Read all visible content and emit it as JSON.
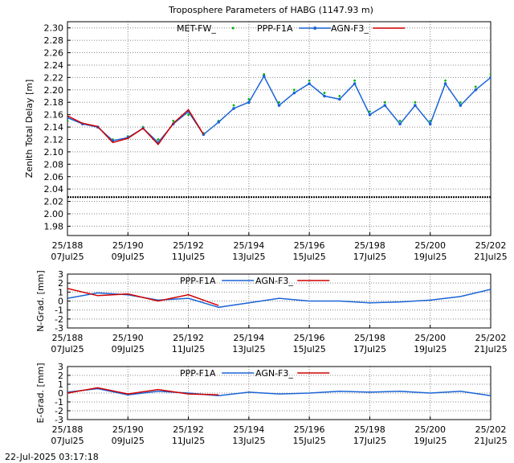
{
  "chart_data": [
    {
      "type": "line",
      "title": "Troposphere Parameters of HABG (1147.93 m)",
      "ylabel": "Zenith Total Delay [m]",
      "xlabel": "",
      "xlim": [
        188,
        202
      ],
      "ylim": [
        1.965,
        2.31
      ],
      "y_ticks": [
        "1.98",
        "2.00",
        "2.02",
        "2.04",
        "2.06",
        "2.08",
        "2.10",
        "2.12",
        "2.14",
        "2.16",
        "2.18",
        "2.20",
        "2.22",
        "2.24",
        "2.26",
        "2.28",
        "2.30"
      ],
      "x_ticks": [
        {
          "x": 188,
          "doy": "25/188",
          "date": "07Jul25"
        },
        {
          "x": 190,
          "doy": "25/190",
          "date": "09Jul25"
        },
        {
          "x": 192,
          "doy": "25/192",
          "date": "11Jul25"
        },
        {
          "x": 194,
          "doy": "25/194",
          "date": "13Jul25"
        },
        {
          "x": 196,
          "doy": "25/196",
          "date": "15Jul25"
        },
        {
          "x": 198,
          "doy": "25/198",
          "date": "17Jul25"
        },
        {
          "x": 200,
          "doy": "25/200",
          "date": "19Jul25"
        },
        {
          "x": 202,
          "doy": "25/202",
          "date": "21Jul25"
        }
      ],
      "grid": true,
      "legend": "top",
      "series": [
        {
          "name": "MET-FW_",
          "color": "#00b000",
          "style": "dots",
          "x": [
            188,
            188.5,
            189,
            189.5,
            190,
            190.5,
            191,
            191.5,
            192,
            192.5,
            193,
            193.5,
            194,
            194.5,
            195,
            195.5,
            196,
            196.5,
            197,
            197.5,
            198,
            198.5,
            199,
            199.5,
            200,
            200.5,
            201,
            201.5,
            202
          ],
          "values": [
            2.15,
            2.145,
            2.14,
            2.12,
            2.125,
            2.14,
            2.12,
            2.15,
            2.16,
            2.13,
            2.15,
            2.175,
            2.185,
            2.225,
            2.18,
            2.2,
            2.215,
            2.195,
            2.19,
            2.215,
            2.165,
            2.18,
            2.15,
            2.18,
            2.15,
            2.215,
            2.18,
            2.205,
            2.225
          ]
        },
        {
          "name": "PPP-F1A",
          "color": "#1a64d6",
          "style": "line-dots",
          "x": [
            188,
            188.5,
            189,
            189.5,
            190,
            190.5,
            191,
            191.5,
            192,
            192.5,
            193,
            193.5,
            194,
            194.5,
            195,
            195.5,
            196,
            196.5,
            197,
            197.5,
            198,
            198.5,
            199,
            199.5,
            200,
            200.5,
            201,
            201.5,
            202
          ],
          "values": [
            2.155,
            2.145,
            2.14,
            2.118,
            2.123,
            2.138,
            2.115,
            2.145,
            2.165,
            2.128,
            2.148,
            2.17,
            2.18,
            2.222,
            2.175,
            2.195,
            2.21,
            2.19,
            2.185,
            2.21,
            2.16,
            2.175,
            2.145,
            2.175,
            2.145,
            2.21,
            2.175,
            2.2,
            2.22
          ]
        },
        {
          "name": "AGN-F3_",
          "color": "#d00000",
          "style": "line",
          "x": [
            188,
            188.5,
            189,
            189.5,
            190,
            190.5,
            191,
            191.5,
            192,
            192.5
          ],
          "values": [
            2.158,
            2.146,
            2.141,
            2.115,
            2.122,
            2.138,
            2.112,
            2.146,
            2.168,
            2.128
          ]
        },
        {
          "name": "",
          "color": "#000000",
          "style": "dots",
          "x": [
            188,
            202
          ],
          "values": [
            2.027,
            2.027
          ]
        }
      ]
    },
    {
      "type": "line",
      "title": "",
      "ylabel": "N-Grad. [mm]",
      "xlabel": "",
      "xlim": [
        188,
        202
      ],
      "ylim": [
        -3,
        3
      ],
      "y_ticks": [
        "3",
        "2",
        "1",
        "0",
        "-1",
        "-2",
        "-3"
      ],
      "x_ticks": [
        {
          "x": 188,
          "doy": "25/188",
          "date": "07Jul25"
        },
        {
          "x": 190,
          "doy": "25/190",
          "date": "09Jul25"
        },
        {
          "x": 192,
          "doy": "25/192",
          "date": "11Jul25"
        },
        {
          "x": 194,
          "doy": "25/194",
          "date": "13Jul25"
        },
        {
          "x": 196,
          "doy": "25/196",
          "date": "15Jul25"
        },
        {
          "x": 198,
          "doy": "25/198",
          "date": "17Jul25"
        },
        {
          "x": 200,
          "doy": "25/200",
          "date": "19Jul25"
        },
        {
          "x": 202,
          "doy": "25/202",
          "date": "21Jul25"
        }
      ],
      "grid": true,
      "legend": "top",
      "series": [
        {
          "name": "PPP-F1A",
          "color": "#1a64d6",
          "x": [
            188,
            189,
            190,
            191,
            192,
            193,
            194,
            195,
            196,
            197,
            198,
            199,
            200,
            201,
            202
          ],
          "values": [
            0.3,
            0.9,
            0.7,
            0.1,
            0.3,
            -0.7,
            -0.2,
            0.3,
            0.0,
            0.0,
            -0.2,
            -0.1,
            0.1,
            0.5,
            1.3
          ]
        },
        {
          "name": "AGN-F3_",
          "color": "#d00000",
          "x": [
            188,
            189,
            190,
            191,
            192,
            193
          ],
          "values": [
            1.4,
            0.6,
            0.8,
            0.0,
            0.7,
            -0.5
          ]
        }
      ]
    },
    {
      "type": "line",
      "title": "",
      "ylabel": "E-Grad. [mm]",
      "xlabel": "",
      "xlim": [
        188,
        202
      ],
      "ylim": [
        -3,
        3
      ],
      "y_ticks": [
        "3",
        "2",
        "1",
        "0",
        "-1",
        "-2",
        "-3"
      ],
      "x_ticks": [
        {
          "x": 188,
          "doy": "25/188",
          "date": "07Jul25"
        },
        {
          "x": 190,
          "doy": "25/190",
          "date": "09Jul25"
        },
        {
          "x": 192,
          "doy": "25/192",
          "date": "11Jul25"
        },
        {
          "x": 194,
          "doy": "25/194",
          "date": "13Jul25"
        },
        {
          "x": 196,
          "doy": "25/196",
          "date": "15Jul25"
        },
        {
          "x": 198,
          "doy": "25/198",
          "date": "17Jul25"
        },
        {
          "x": 200,
          "doy": "25/200",
          "date": "19Jul25"
        },
        {
          "x": 202,
          "doy": "25/202",
          "date": "21Jul25"
        }
      ],
      "grid": true,
      "legend": "top",
      "series": [
        {
          "name": "PPP-F1A",
          "color": "#1a64d6",
          "x": [
            188,
            189,
            190,
            191,
            192,
            193,
            194,
            195,
            196,
            197,
            198,
            199,
            200,
            201,
            202
          ],
          "values": [
            0.1,
            0.5,
            -0.2,
            0.2,
            0.0,
            -0.3,
            0.1,
            -0.1,
            0.0,
            0.2,
            0.1,
            0.2,
            0.0,
            0.2,
            -0.3
          ]
        },
        {
          "name": "AGN-F3_",
          "color": "#d00000",
          "x": [
            188,
            189,
            190,
            191,
            192,
            193
          ],
          "values": [
            0.0,
            0.6,
            -0.1,
            0.4,
            -0.1,
            -0.2
          ]
        }
      ]
    }
  ],
  "footer": {
    "timestamp": "22-Jul-2025 03:17:18"
  }
}
